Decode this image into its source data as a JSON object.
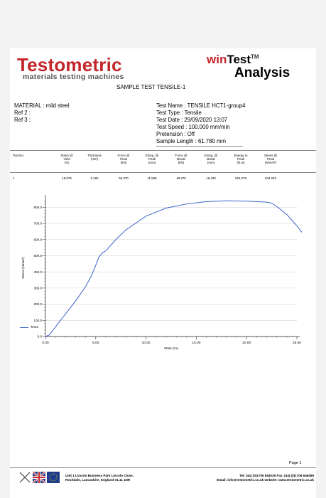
{
  "header": {
    "brand": "Testometric",
    "tagline": "materials testing machines",
    "product_win": "win",
    "product_test": "Test",
    "product_tm": "TM",
    "product_analysis": "Analysis",
    "report_title": "SAMPLE TEST TENSILE-1"
  },
  "info_left": {
    "material": "MATERIAL : mild steel",
    "ref2": "Ref 2 :",
    "ref3": "Ref 3 :"
  },
  "info_right": {
    "test_name": "Test Name : TENSILE HCT1-group4",
    "test_type": "Test Type : Tensile",
    "test_date": "Test Date : 29/09/2020 13:07",
    "test_speed": "Test Speed : 100.000 mm/min",
    "pretension": "Pretension : Off",
    "sample_length": "Sample Length : 61.780 mm"
  },
  "results_table": {
    "headers": [
      [
        "Test No"
      ],
      [
        "Strain @",
        "Yield",
        "(%)"
      ],
      [
        "Thickness",
        "(mm)"
      ],
      [
        "Force @",
        "Peak",
        "(kN)"
      ],
      [
        "Elong. @",
        "Peak",
        "(mm)"
      ],
      [
        "Force @",
        "Break",
        "(kN)"
      ],
      [
        "Elong. @",
        "Break",
        "(mm)"
      ],
      [
        "Energy to",
        "Peak",
        "(N.m)"
      ],
      [
        "Stress @",
        "Peak",
        "(N/mm²)"
      ]
    ],
    "rows": [
      [
        "1",
        "18.678",
        "6.160",
        "65.370",
        "11.539",
        "49.270",
        "16.433",
        "522.278",
        "844.233"
      ]
    ]
  },
  "chart_data": {
    "type": "line",
    "xlabel": "Strain (%)",
    "ylabel": "Stress (N/mm²)",
    "xlim": [
      0,
      25
    ],
    "ylim": [
      0,
      850
    ],
    "x_ticks": [
      "0.00",
      "5.00",
      "10.00",
      "15.00",
      "20.00",
      "25.00"
    ],
    "y_ticks": [
      "0.0",
      "100.0",
      "200.0",
      "300.0",
      "400.0",
      "500.0",
      "600.0",
      "700.0",
      "800.0"
    ],
    "grid": true,
    "legend_position": "bottom-left",
    "series": [
      {
        "name": "Test1",
        "color": "#3a63c7",
        "x": [
          0.0,
          0.4,
          1.0,
          2.0,
          3.0,
          4.0,
          4.6,
          5.0,
          5.3,
          5.7,
          6.0,
          7.0,
          8.0,
          10.0,
          12.0,
          14.0,
          16.0,
          18.0,
          20.0,
          21.0,
          22.0,
          22.5,
          23.0,
          23.5,
          24.0,
          24.5,
          25.0,
          25.5
        ],
        "y": [
          0,
          10,
          60,
          140,
          220,
          310,
          380,
          440,
          490,
          520,
          530,
          600,
          660,
          745,
          795,
          820,
          835,
          840,
          838,
          835,
          832,
          825,
          805,
          780,
          755,
          720,
          685,
          645
        ]
      }
    ]
  },
  "footer": {
    "page": "Page 1",
    "address_line1": "Unit 1 Lincoln Business Park Lincoln Close,",
    "address_line2": "Rochdale, Lancashire, England OL11 1NR",
    "tel_fax": "Tel: (44) (0)1706 654039  Fax: (44) (0)1706 646089",
    "email_web": "Email: info@testometric.co.uk  website: www.testometric.co.uk"
  }
}
